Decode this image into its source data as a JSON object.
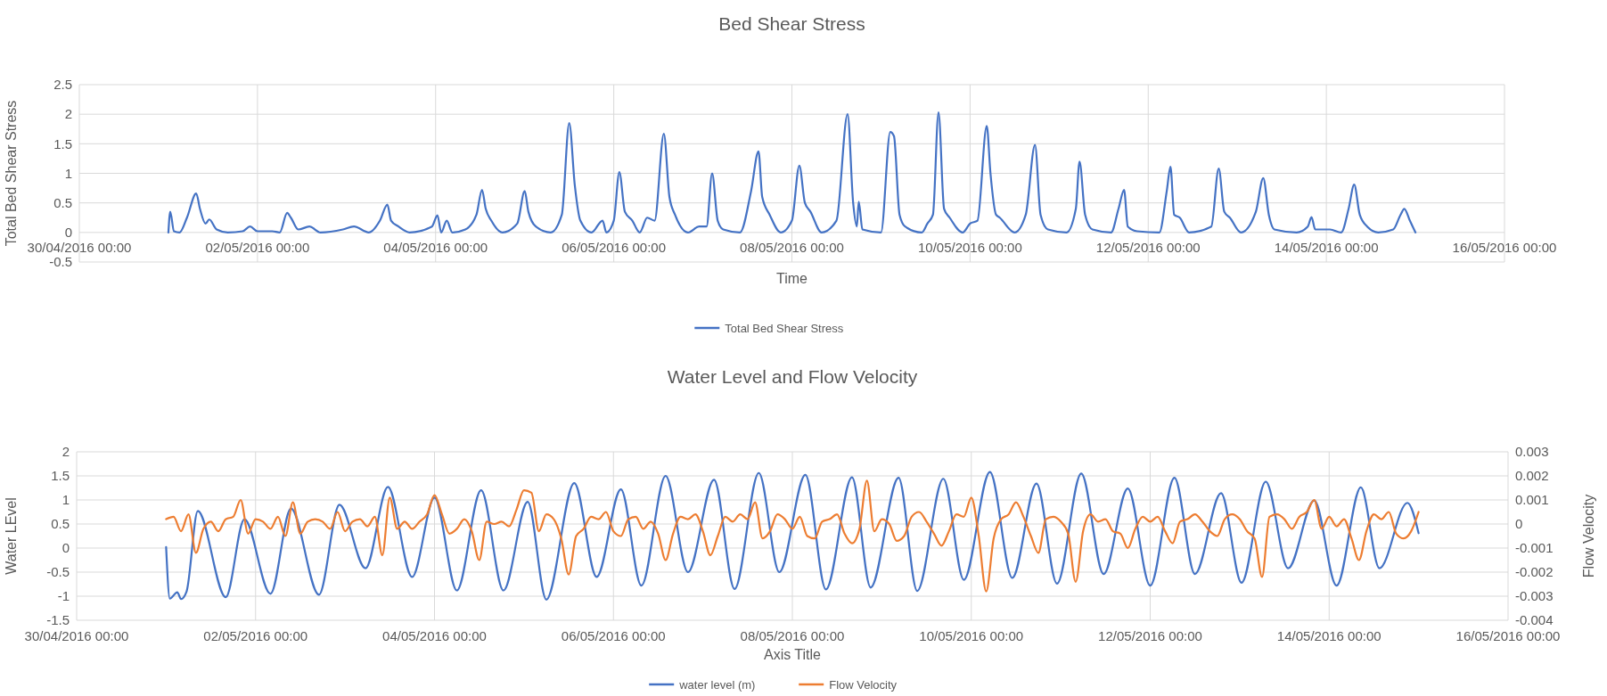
{
  "chart_data": [
    {
      "type": "line",
      "title": "Bed Shear Stress",
      "xlabel": "Time",
      "ylabel": "Total Bed Shear Stress",
      "xlim": [
        "2016-04-30T00:00",
        "2016-05-16T00:00"
      ],
      "xticks": [
        {
          "value": "2016-04-30T00:00",
          "label": "30/04/2016 00:00"
        },
        {
          "value": "2016-05-02T00:00",
          "label": "02/05/2016 00:00"
        },
        {
          "value": "2016-05-04T00:00",
          "label": "04/05/2016 00:00"
        },
        {
          "value": "2016-05-06T00:00",
          "label": "06/05/2016 00:00"
        },
        {
          "value": "2016-05-08T00:00",
          "label": "08/05/2016 00:00"
        },
        {
          "value": "2016-05-10T00:00",
          "label": "10/05/2016 00:00"
        },
        {
          "value": "2016-05-12T00:00",
          "label": "12/05/2016 00:00"
        },
        {
          "value": "2016-05-14T00:00",
          "label": "14/05/2016 00:00"
        },
        {
          "value": "2016-05-16T00:00",
          "label": "16/05/2016 00:00"
        }
      ],
      "ylim": [
        -0.5,
        2.5
      ],
      "yticks": [
        -0.5,
        0,
        0.5,
        1,
        1.5,
        2,
        2.5
      ],
      "grid": true,
      "legend": "bottom",
      "series": [
        {
          "name": "Total Bed Shear Stress",
          "color": "#4472c4",
          "x": [
            "2016-05-01T00:00",
            "2016-05-01T00:30",
            "2016-05-01T01:30",
            "2016-05-01T03:00",
            "2016-05-01T05:00",
            "2016-05-01T07:30",
            "2016-05-01T08:30",
            "2016-05-01T10:00",
            "2016-05-01T11:00",
            "2016-05-01T13:00",
            "2016-05-01T16:00",
            "2016-05-01T20:00",
            "2016-05-01T22:00",
            "2016-05-02T00:00",
            "2016-05-02T04:00",
            "2016-05-02T06:00",
            "2016-05-02T08:00",
            "2016-05-02T09:00",
            "2016-05-02T11:00",
            "2016-05-02T14:00",
            "2016-05-02T17:00",
            "2016-05-02T23:00",
            "2016-05-03T02:00",
            "2016-05-03T06:00",
            "2016-05-03T09:00",
            "2016-05-03T11:00",
            "2016-05-03T12:00",
            "2016-05-03T14:00",
            "2016-05-03T17:00",
            "2016-05-03T23:00",
            "2016-05-04T00:30",
            "2016-05-04T01:30",
            "2016-05-04T03:00",
            "2016-05-04T04:30",
            "2016-05-04T08:00",
            "2016-05-04T11:00",
            "2016-05-04T12:30",
            "2016-05-04T13:30",
            "2016-05-04T15:00",
            "2016-05-04T18:00",
            "2016-05-04T22:00",
            "2016-05-05T00:00",
            "2016-05-05T01:00",
            "2016-05-05T03:00",
            "2016-05-05T07:00",
            "2016-05-05T10:00",
            "2016-05-05T12:00",
            "2016-05-05T13:30",
            "2016-05-05T15:00",
            "2016-05-05T18:00",
            "2016-05-05T21:00",
            "2016-05-05T22:00",
            "2016-05-06T00:00",
            "2016-05-06T01:30",
            "2016-05-06T03:00",
            "2016-05-06T05:00",
            "2016-05-06T07:00",
            "2016-05-06T09:00",
            "2016-05-06T11:00",
            "2016-05-06T13:30",
            "2016-05-06T15:00",
            "2016-05-06T16:30",
            "2016-05-06T20:00",
            "2016-05-06T23:00",
            "2016-05-07T01:00",
            "2016-05-07T02:30",
            "2016-05-07T04:00",
            "2016-05-07T05:30",
            "2016-05-07T10:00",
            "2016-05-07T13:00",
            "2016-05-07T15:00",
            "2016-05-07T16:00",
            "2016-05-07T18:00",
            "2016-05-07T21:00",
            "2016-05-08T00:00",
            "2016-05-08T02:00",
            "2016-05-08T03:30",
            "2016-05-08T05:00",
            "2016-05-08T08:00",
            "2016-05-08T12:00",
            "2016-05-08T15:00",
            "2016-05-08T16:30",
            "2016-05-08T17:30",
            "2016-05-08T18:00",
            "2016-05-08T19:00",
            "2016-05-09T00:00",
            "2016-05-09T02:30",
            "2016-05-09T03:30",
            "2016-05-09T05:00",
            "2016-05-09T06:30",
            "2016-05-09T11:00",
            "2016-05-09T12:30",
            "2016-05-09T14:00",
            "2016-05-09T15:30",
            "2016-05-09T17:00",
            "2016-05-09T18:30",
            "2016-05-09T22:00",
            "2016-05-10T00:00",
            "2016-05-10T02:00",
            "2016-05-10T04:30",
            "2016-05-10T05:30",
            "2016-05-10T07:00",
            "2016-05-10T08:00",
            "2016-05-10T12:00",
            "2016-05-10T15:00",
            "2016-05-10T17:30",
            "2016-05-10T19:00",
            "2016-05-10T21:00",
            "2016-05-11T02:00",
            "2016-05-11T04:30",
            "2016-05-11T05:30",
            "2016-05-11T07:00",
            "2016-05-11T09:00",
            "2016-05-11T14:00",
            "2016-05-11T16:00",
            "2016-05-11T17:30",
            "2016-05-11T18:30",
            "2016-05-11T21:00",
            "2016-05-12T03:00",
            "2016-05-12T05:00",
            "2016-05-12T06:00",
            "2016-05-12T07:00",
            "2016-05-12T08:30",
            "2016-05-12T11:00",
            "2016-05-12T17:00",
            "2016-05-12T19:00",
            "2016-05-12T20:30",
            "2016-05-12T22:00",
            "2016-05-13T01:00",
            "2016-05-13T05:00",
            "2016-05-13T07:00",
            "2016-05-13T08:30",
            "2016-05-13T10:00",
            "2016-05-13T16:00",
            "2016-05-13T19:00",
            "2016-05-13T20:00",
            "2016-05-13T21:00",
            "2016-05-14T01:00",
            "2016-05-14T04:00",
            "2016-05-14T06:00",
            "2016-05-14T07:30",
            "2016-05-14T09:00",
            "2016-05-14T11:00",
            "2016-05-14T14:00",
            "2016-05-14T18:00",
            "2016-05-14T20:00",
            "2016-05-14T21:00",
            "2016-05-14T22:30",
            "2016-05-15T00:00"
          ],
          "values": [
            0,
            0.35,
            0.02,
            0,
            0.25,
            0.66,
            0.4,
            0.15,
            0.22,
            0.05,
            0,
            0.02,
            0.1,
            0.02,
            0.02,
            0,
            0.33,
            0.25,
            0.05,
            0.1,
            0,
            0.05,
            0.1,
            0,
            0.2,
            0.47,
            0.2,
            0.1,
            0,
            0.1,
            0.29,
            0,
            0.2,
            0,
            0.05,
            0.3,
            0.72,
            0.4,
            0.2,
            0,
            0.15,
            0.7,
            0.35,
            0.1,
            0,
            0.3,
            1.85,
            0.8,
            0.2,
            0,
            0.2,
            0,
            0.2,
            1.02,
            0.35,
            0.2,
            0,
            0.25,
            0.2,
            1.67,
            0.6,
            0.3,
            0,
            0.1,
            0.1,
            1.0,
            0.2,
            0.05,
            0,
            0.7,
            1.37,
            0.6,
            0.3,
            0,
            0.2,
            1.13,
            0.5,
            0.35,
            0,
            0.2,
            2.0,
            0.5,
            0.1,
            0.52,
            0.05,
            0,
            1.7,
            1.63,
            0.3,
            0.1,
            0,
            0.15,
            0.3,
            2.03,
            0.4,
            0.25,
            0,
            0.15,
            0.2,
            1.8,
            1.0,
            0.3,
            0.25,
            0,
            0.3,
            1.48,
            0.3,
            0.05,
            0,
            0.4,
            1.2,
            0.3,
            0.05,
            0,
            0.4,
            0.72,
            0.1,
            0.02,
            0,
            0.7,
            1.11,
            0.3,
            0.25,
            0,
            0.1,
            1.08,
            0.35,
            0.25,
            0,
            0.35,
            0.92,
            0.3,
            0.05,
            0,
            0.1,
            0.26,
            0.05,
            0.05,
            0,
            0.4,
            0.81,
            0.3,
            0.1,
            0,
            0.05,
            0.3,
            0.4,
            0.2,
            0
          ]
        }
      ]
    },
    {
      "type": "line",
      "title": "Water Level and Flow Velocity",
      "xlabel": "Axis Title",
      "ylabel": "Water LEvel",
      "y2label": "Flow Velocity",
      "xlim": [
        "2016-04-30T00:00",
        "2016-05-16T00:00"
      ],
      "xticks": [
        {
          "value": "2016-04-30T00:00",
          "label": "30/04/2016 00:00"
        },
        {
          "value": "2016-05-02T00:00",
          "label": "02/05/2016 00:00"
        },
        {
          "value": "2016-05-04T00:00",
          "label": "04/05/2016 00:00"
        },
        {
          "value": "2016-05-06T00:00",
          "label": "06/05/2016 00:00"
        },
        {
          "value": "2016-05-08T00:00",
          "label": "08/05/2016 00:00"
        },
        {
          "value": "2016-05-10T00:00",
          "label": "10/05/2016 00:00"
        },
        {
          "value": "2016-05-12T00:00",
          "label": "12/05/2016 00:00"
        },
        {
          "value": "2016-05-14T00:00",
          "label": "14/05/2016 00:00"
        },
        {
          "value": "2016-05-16T00:00",
          "label": "16/05/2016 00:00"
        }
      ],
      "ylim": [
        -1.5,
        2
      ],
      "yticks": [
        -1.5,
        -1,
        -0.5,
        0,
        0.5,
        1,
        1.5,
        2
      ],
      "y2lim": [
        -0.004,
        0.003
      ],
      "y2ticks": [
        -0.004,
        -0.003,
        -0.002,
        -0.001,
        0,
        0.001,
        0.002,
        0.003
      ],
      "grid": true,
      "legend": "bottom",
      "series": [
        {
          "name": "water level (m)",
          "color": "#4472c4",
          "x": [
            "2016-05-01T00:00",
            "2016-05-01T01:00",
            "2016-05-01T03:00",
            "2016-05-01T04:00",
            "2016-05-01T05:30",
            "2016-05-01T08:30",
            "2016-05-01T16:00",
            "2016-05-01T21:00",
            "2016-05-02T04:00",
            "2016-05-02T09:30",
            "2016-05-02T17:00",
            "2016-05-02T22:30",
            "2016-05-03T05:30",
            "2016-05-03T11:30",
            "2016-05-03T18:00",
            "2016-05-04T00:00",
            "2016-05-04T06:00",
            "2016-05-04T12:30",
            "2016-05-04T18:30",
            "2016-05-05T01:00",
            "2016-05-05T06:00",
            "2016-05-05T13:30",
            "2016-05-05T19:30",
            "2016-05-06T02:00",
            "2016-05-06T07:30",
            "2016-05-06T14:00",
            "2016-05-06T20:00",
            "2016-05-07T03:00",
            "2016-05-07T08:30",
            "2016-05-07T15:00",
            "2016-05-07T20:30",
            "2016-05-08T03:30",
            "2016-05-08T09:00",
            "2016-05-08T16:00",
            "2016-05-08T21:00",
            "2016-05-09T04:30",
            "2016-05-09T09:30",
            "2016-05-09T16:30",
            "2016-05-09T22:00",
            "2016-05-10T05:00",
            "2016-05-10T11:00",
            "2016-05-10T17:30",
            "2016-05-10T23:00",
            "2016-05-11T05:30",
            "2016-05-11T11:30",
            "2016-05-11T18:00",
            "2016-05-12T00:00",
            "2016-05-12T06:30",
            "2016-05-12T12:00",
            "2016-05-12T19:00",
            "2016-05-13T00:30",
            "2016-05-13T07:00",
            "2016-05-13T13:00",
            "2016-05-13T20:00",
            "2016-05-14T02:00",
            "2016-05-14T08:30",
            "2016-05-14T13:30",
            "2016-05-14T21:00",
            "2016-05-15T00:00"
          ],
          "values": [
            0.02,
            -1.05,
            -0.92,
            -1.06,
            -0.9,
            0.77,
            -1.02,
            0.6,
            -0.95,
            0.82,
            -0.97,
            0.9,
            -0.42,
            1.27,
            -0.6,
            1.05,
            -0.88,
            1.2,
            -0.88,
            0.96,
            -1.07,
            1.35,
            -0.6,
            1.22,
            -0.78,
            1.5,
            -0.5,
            1.42,
            -0.85,
            1.56,
            -0.5,
            1.52,
            -0.86,
            1.47,
            -0.82,
            1.46,
            -0.89,
            1.44,
            -0.66,
            1.58,
            -0.62,
            1.34,
            -0.74,
            1.55,
            -0.54,
            1.24,
            -0.78,
            1.46,
            -0.54,
            1.14,
            -0.72,
            1.38,
            -0.42,
            0.99,
            -0.78,
            1.26,
            -0.42,
            0.94,
            0.31
          ]
        },
        {
          "name": "Flow Velocity",
          "color": "#ed7d31",
          "axis": "y2",
          "x": [
            "2016-05-01T00:00",
            "2016-05-01T02:00",
            "2016-05-01T04:00",
            "2016-05-01T06:00",
            "2016-05-01T08:00",
            "2016-05-01T10:00",
            "2016-05-01T12:00",
            "2016-05-01T14:00",
            "2016-05-01T16:00",
            "2016-05-01T18:00",
            "2016-05-01T20:00",
            "2016-05-01T22:00",
            "2016-05-02T00:00",
            "2016-05-02T02:00",
            "2016-05-02T04:00",
            "2016-05-02T06:00",
            "2016-05-02T08:00",
            "2016-05-02T10:00",
            "2016-05-02T12:00",
            "2016-05-02T14:00",
            "2016-05-02T16:00",
            "2016-05-02T18:00",
            "2016-05-02T20:00",
            "2016-05-02T22:00",
            "2016-05-03T00:00",
            "2016-05-03T02:00",
            "2016-05-03T04:00",
            "2016-05-03T06:00",
            "2016-05-03T08:00",
            "2016-05-03T10:00",
            "2016-05-03T12:00",
            "2016-05-03T14:00",
            "2016-05-03T16:00",
            "2016-05-03T18:00",
            "2016-05-03T20:00",
            "2016-05-03T22:00",
            "2016-05-04T00:00",
            "2016-05-04T02:00",
            "2016-05-04T04:00",
            "2016-05-04T06:00",
            "2016-05-04T08:00",
            "2016-05-04T10:00",
            "2016-05-04T12:00",
            "2016-05-04T14:00",
            "2016-05-04T16:00",
            "2016-05-04T18:00",
            "2016-05-04T20:00",
            "2016-05-04T22:00",
            "2016-05-05T00:00",
            "2016-05-05T02:00",
            "2016-05-05T04:00",
            "2016-05-05T06:00",
            "2016-05-05T08:00",
            "2016-05-05T10:00",
            "2016-05-05T12:00",
            "2016-05-05T14:00",
            "2016-05-05T16:00",
            "2016-05-05T18:00",
            "2016-05-05T20:00",
            "2016-05-05T22:00",
            "2016-05-06T00:00",
            "2016-05-06T02:00",
            "2016-05-06T04:00",
            "2016-05-06T06:00",
            "2016-05-06T08:00",
            "2016-05-06T10:00",
            "2016-05-06T12:00",
            "2016-05-06T14:00",
            "2016-05-06T16:00",
            "2016-05-06T18:00",
            "2016-05-06T20:00",
            "2016-05-06T22:00",
            "2016-05-07T00:00",
            "2016-05-07T02:00",
            "2016-05-07T04:00",
            "2016-05-07T06:00",
            "2016-05-07T08:00",
            "2016-05-07T10:00",
            "2016-05-07T12:00",
            "2016-05-07T14:00",
            "2016-05-07T16:00",
            "2016-05-07T18:00",
            "2016-05-07T20:00",
            "2016-05-07T22:00",
            "2016-05-08T00:00",
            "2016-05-08T02:00",
            "2016-05-08T04:00",
            "2016-05-08T06:00",
            "2016-05-08T08:00",
            "2016-05-08T10:00",
            "2016-05-08T12:00",
            "2016-05-08T14:00",
            "2016-05-08T16:00",
            "2016-05-08T18:00",
            "2016-05-08T20:00",
            "2016-05-08T22:00",
            "2016-05-09T00:00",
            "2016-05-09T02:00",
            "2016-05-09T04:00",
            "2016-05-09T06:00",
            "2016-05-09T08:00",
            "2016-05-09T10:00",
            "2016-05-09T12:00",
            "2016-05-09T14:00",
            "2016-05-09T16:00",
            "2016-05-09T18:00",
            "2016-05-09T20:00",
            "2016-05-09T22:00",
            "2016-05-10T00:00",
            "2016-05-10T02:00",
            "2016-05-10T04:00",
            "2016-05-10T06:00",
            "2016-05-10T08:00",
            "2016-05-10T10:00",
            "2016-05-10T12:00",
            "2016-05-10T14:00",
            "2016-05-10T16:00",
            "2016-05-10T18:00",
            "2016-05-10T20:00",
            "2016-05-10T22:00",
            "2016-05-11T00:00",
            "2016-05-11T02:00",
            "2016-05-11T04:00",
            "2016-05-11T06:00",
            "2016-05-11T08:00",
            "2016-05-11T10:00",
            "2016-05-11T12:00",
            "2016-05-11T14:00",
            "2016-05-11T16:00",
            "2016-05-11T18:00",
            "2016-05-11T20:00",
            "2016-05-11T22:00",
            "2016-05-12T00:00",
            "2016-05-12T02:00",
            "2016-05-12T04:00",
            "2016-05-12T06:00",
            "2016-05-12T08:00",
            "2016-05-12T10:00",
            "2016-05-12T12:00",
            "2016-05-12T14:00",
            "2016-05-12T16:00",
            "2016-05-12T18:00",
            "2016-05-12T20:00",
            "2016-05-12T22:00",
            "2016-05-13T00:00",
            "2016-05-13T02:00",
            "2016-05-13T04:00",
            "2016-05-13T06:00",
            "2016-05-13T08:00",
            "2016-05-13T10:00",
            "2016-05-13T12:00",
            "2016-05-13T14:00",
            "2016-05-13T16:00",
            "2016-05-13T18:00",
            "2016-05-13T20:00",
            "2016-05-13T22:00",
            "2016-05-14T00:00",
            "2016-05-14T02:00",
            "2016-05-14T04:00",
            "2016-05-14T06:00",
            "2016-05-14T08:00",
            "2016-05-14T10:00",
            "2016-05-14T12:00",
            "2016-05-14T14:00",
            "2016-05-14T16:00",
            "2016-05-14T18:00",
            "2016-05-14T20:00",
            "2016-05-14T22:00",
            "2016-05-15T00:00"
          ],
          "values": [
            0.0002,
            0.0003,
            -0.0003,
            0.0004,
            -0.0012,
            -0.0002,
            0.0001,
            -0.0003,
            0.0002,
            0.0003,
            0.001,
            -0.0004,
            0.0002,
            0.0001,
            -0.0002,
            0.0003,
            -0.0005,
            0.0009,
            -0.0004,
            0.0001,
            0.0002,
            0.0001,
            -0.0002,
            0.0005,
            -0.0003,
            0.0001,
            0.0002,
            -0.0001,
            0.0003,
            -0.0013,
            0.0011,
            -0.0002,
            0.0001,
            -0.0002,
            0.0001,
            0.0004,
            0.0012,
            0.0004,
            -0.0004,
            -0.0002,
            0.0002,
            -0.0003,
            -0.0015,
            0.0001,
            0,
            0.0001,
            -0.0001,
            0.0006,
            0.0014,
            0.0013,
            -0.0003,
            0.0004,
            0.0002,
            -0.0006,
            -0.0021,
            -0.0005,
            -0.0002,
            0.0003,
            0.0002,
            0.0005,
            -0.0003,
            -0.0005,
            0.0002,
            0.0003,
            -0.0002,
            0.0001,
            -0.0004,
            -0.0015,
            -0.0004,
            0.0003,
            0.0002,
            0.0004,
            -0.0003,
            -0.0013,
            -0.0005,
            0.0003,
            0.0001,
            0.0004,
            0.0002,
            0.0009,
            -0.0006,
            -0.0003,
            0.0004,
            0.0002,
            -0.0002,
            0.0003,
            -0.0005,
            -0.0006,
            0.0001,
            0.0002,
            0.0004,
            -0.0004,
            -0.0008,
            -0.0002,
            0.0018,
            -0.0003,
            0.0002,
            0,
            -0.0007,
            -0.0005,
            0.0003,
            0.0005,
            0.0001,
            -0.0004,
            -0.0009,
            -0.0003,
            0.0004,
            0.0003,
            0.0011,
            -0.0005,
            -0.0028,
            -0.0006,
            0.0002,
            0.0004,
            0.0009,
            0.0003,
            -0.0005,
            -0.0012,
            0.0002,
            0.0003,
            0.0001,
            -0.0004,
            -0.0024,
            -0.0003,
            0.0004,
            0.0001,
            0.0002,
            -0.0003,
            -0.0004,
            -0.001,
            -0.0002,
            0.0003,
            0.0001,
            0.0003,
            -0.0003,
            -0.0008,
            0.0001,
            0.0002,
            0.0004,
            0.0001,
            -0.0003,
            -0.0005,
            0.0002,
            0.0004,
            0.0002,
            -0.0003,
            -0.0006,
            -0.0022,
            0.0003,
            0.0004,
            0.0002,
            -0.0002,
            0.0003,
            0.0005,
            0.001,
            -0.0002,
            0.0003,
            -0.0001,
            0.0002,
            -0.0006,
            -0.0015,
            -0.0003,
            0.0004,
            0.0002,
            0.0005,
            -0.0004,
            -0.0006,
            -0.0003,
            0.0005
          ]
        }
      ]
    }
  ]
}
